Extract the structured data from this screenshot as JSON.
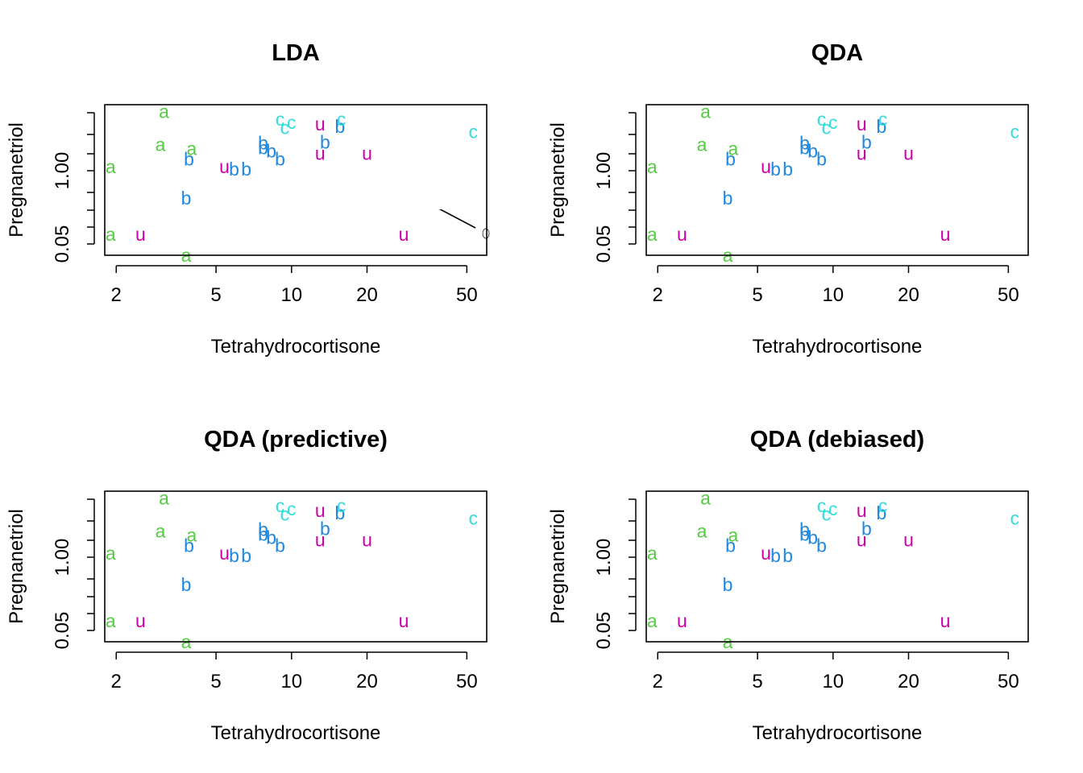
{
  "colors": {
    "a": "#55cc44",
    "b": "#2288dd",
    "c": "#33dddd",
    "u": "#cc00aa",
    "boundary": "#000000"
  },
  "chart_data": [
    {
      "type": "scatter",
      "title": "LDA",
      "xlabel": "Tetrahydrocortisone",
      "ylabel": "Pregnanetriol",
      "x_scale": "log",
      "y_scale": "log",
      "xlim": [
        1.8,
        60
      ],
      "ylim": [
        0.02,
        6.5
      ],
      "x_ticks": [
        2,
        5,
        10,
        20,
        50
      ],
      "y_ticks_labeled": [
        0.05,
        1.0
      ],
      "points": [
        {
          "label": "a",
          "x": 3.1,
          "y": 5.0
        },
        {
          "label": "a",
          "x": 3.0,
          "y": 1.4
        },
        {
          "label": "a",
          "x": 4.0,
          "y": 1.2
        },
        {
          "label": "a",
          "x": 1.9,
          "y": 0.6
        },
        {
          "label": "a",
          "x": 1.9,
          "y": 0.045
        },
        {
          "label": "a",
          "x": 3.8,
          "y": 0.02
        },
        {
          "label": "b",
          "x": 3.9,
          "y": 0.8
        },
        {
          "label": "b",
          "x": 3.8,
          "y": 0.18
        },
        {
          "label": "b",
          "x": 5.9,
          "y": 0.55
        },
        {
          "label": "b",
          "x": 6.6,
          "y": 0.55
        },
        {
          "label": "b",
          "x": 7.7,
          "y": 1.5
        },
        {
          "label": "b",
          "x": 7.7,
          "y": 1.25
        },
        {
          "label": "b",
          "x": 8.3,
          "y": 1.1
        },
        {
          "label": "b",
          "x": 9.0,
          "y": 0.8
        },
        {
          "label": "b",
          "x": 13.6,
          "y": 1.55
        },
        {
          "label": "b",
          "x": 15.6,
          "y": 2.8
        },
        {
          "label": "c",
          "x": 9.0,
          "y": 3.7
        },
        {
          "label": "c",
          "x": 10.0,
          "y": 3.3
        },
        {
          "label": "c",
          "x": 9.4,
          "y": 2.7
        },
        {
          "label": "c",
          "x": 15.8,
          "y": 3.7
        },
        {
          "label": "c",
          "x": 53.0,
          "y": 2.3
        },
        {
          "label": "u",
          "x": 2.5,
          "y": 0.045
        },
        {
          "label": "u",
          "x": 5.4,
          "y": 0.6
        },
        {
          "label": "u",
          "x": 13.0,
          "y": 3.1
        },
        {
          "label": "u",
          "x": 13.0,
          "y": 1.0
        },
        {
          "label": "u",
          "x": 20.0,
          "y": 1.0
        },
        {
          "label": "u",
          "x": 28.0,
          "y": 0.045
        }
      ]
    },
    {
      "type": "scatter",
      "title": "QDA",
      "xlabel": "Tetrahydrocortisone",
      "ylabel": "Pregnanetriol",
      "x_scale": "log",
      "y_scale": "log",
      "xlim": [
        1.8,
        60
      ],
      "ylim": [
        0.02,
        6.5
      ],
      "x_ticks": [
        2,
        5,
        10,
        20,
        50
      ],
      "y_ticks_labeled": [
        0.05,
        1.0
      ],
      "points": [
        {
          "label": "a",
          "x": 3.1,
          "y": 5.0
        },
        {
          "label": "a",
          "x": 3.0,
          "y": 1.4
        },
        {
          "label": "a",
          "x": 4.0,
          "y": 1.2
        },
        {
          "label": "a",
          "x": 1.9,
          "y": 0.6
        },
        {
          "label": "a",
          "x": 1.9,
          "y": 0.045
        },
        {
          "label": "a",
          "x": 3.8,
          "y": 0.02
        },
        {
          "label": "b",
          "x": 3.9,
          "y": 0.8
        },
        {
          "label": "b",
          "x": 3.8,
          "y": 0.18
        },
        {
          "label": "b",
          "x": 5.9,
          "y": 0.55
        },
        {
          "label": "b",
          "x": 6.6,
          "y": 0.55
        },
        {
          "label": "b",
          "x": 7.7,
          "y": 1.5
        },
        {
          "label": "b",
          "x": 7.7,
          "y": 1.25
        },
        {
          "label": "b",
          "x": 8.3,
          "y": 1.1
        },
        {
          "label": "b",
          "x": 9.0,
          "y": 0.8
        },
        {
          "label": "b",
          "x": 13.6,
          "y": 1.55
        },
        {
          "label": "b",
          "x": 15.6,
          "y": 2.8
        },
        {
          "label": "c",
          "x": 9.0,
          "y": 3.7
        },
        {
          "label": "c",
          "x": 10.0,
          "y": 3.3
        },
        {
          "label": "c",
          "x": 9.4,
          "y": 2.7
        },
        {
          "label": "c",
          "x": 15.8,
          "y": 3.7
        },
        {
          "label": "c",
          "x": 53.0,
          "y": 2.3
        },
        {
          "label": "u",
          "x": 2.5,
          "y": 0.045
        },
        {
          "label": "u",
          "x": 5.4,
          "y": 0.6
        },
        {
          "label": "u",
          "x": 13.0,
          "y": 3.1
        },
        {
          "label": "u",
          "x": 13.0,
          "y": 1.0
        },
        {
          "label": "u",
          "x": 20.0,
          "y": 1.0
        },
        {
          "label": "u",
          "x": 28.0,
          "y": 0.045
        }
      ]
    },
    {
      "type": "scatter",
      "title": "QDA (predictive)",
      "xlabel": "Tetrahydrocortisone",
      "ylabel": "Pregnanetriol",
      "x_scale": "log",
      "y_scale": "log",
      "xlim": [
        1.8,
        60
      ],
      "ylim": [
        0.02,
        6.5
      ],
      "x_ticks": [
        2,
        5,
        10,
        20,
        50
      ],
      "y_ticks_labeled": [
        0.05,
        1.0
      ],
      "points": [
        {
          "label": "a",
          "x": 3.1,
          "y": 5.0
        },
        {
          "label": "a",
          "x": 3.0,
          "y": 1.4
        },
        {
          "label": "a",
          "x": 4.0,
          "y": 1.2
        },
        {
          "label": "a",
          "x": 1.9,
          "y": 0.6
        },
        {
          "label": "a",
          "x": 1.9,
          "y": 0.045
        },
        {
          "label": "a",
          "x": 3.8,
          "y": 0.02
        },
        {
          "label": "b",
          "x": 3.9,
          "y": 0.8
        },
        {
          "label": "b",
          "x": 3.8,
          "y": 0.18
        },
        {
          "label": "b",
          "x": 5.9,
          "y": 0.55
        },
        {
          "label": "b",
          "x": 6.6,
          "y": 0.55
        },
        {
          "label": "b",
          "x": 7.7,
          "y": 1.5
        },
        {
          "label": "b",
          "x": 7.7,
          "y": 1.25
        },
        {
          "label": "b",
          "x": 8.3,
          "y": 1.1
        },
        {
          "label": "b",
          "x": 9.0,
          "y": 0.8
        },
        {
          "label": "b",
          "x": 13.6,
          "y": 1.55
        },
        {
          "label": "b",
          "x": 15.6,
          "y": 2.8
        },
        {
          "label": "c",
          "x": 9.0,
          "y": 3.7
        },
        {
          "label": "c",
          "x": 10.0,
          "y": 3.3
        },
        {
          "label": "c",
          "x": 9.4,
          "y": 2.7
        },
        {
          "label": "c",
          "x": 15.8,
          "y": 3.7
        },
        {
          "label": "c",
          "x": 53.0,
          "y": 2.3
        },
        {
          "label": "u",
          "x": 2.5,
          "y": 0.045
        },
        {
          "label": "u",
          "x": 5.4,
          "y": 0.6
        },
        {
          "label": "u",
          "x": 13.0,
          "y": 3.1
        },
        {
          "label": "u",
          "x": 13.0,
          "y": 1.0
        },
        {
          "label": "u",
          "x": 20.0,
          "y": 1.0
        },
        {
          "label": "u",
          "x": 28.0,
          "y": 0.045
        }
      ]
    },
    {
      "type": "scatter",
      "title": "QDA (debiased)",
      "xlabel": "Tetrahydrocortisone",
      "ylabel": "Pregnanetriol",
      "x_scale": "log",
      "y_scale": "log",
      "xlim": [
        1.8,
        60
      ],
      "ylim": [
        0.02,
        6.5
      ],
      "x_ticks": [
        2,
        5,
        10,
        20,
        50
      ],
      "y_ticks_labeled": [
        0.05,
        1.0
      ],
      "points": [
        {
          "label": "a",
          "x": 3.1,
          "y": 5.0
        },
        {
          "label": "a",
          "x": 3.0,
          "y": 1.4
        },
        {
          "label": "a",
          "x": 4.0,
          "y": 1.2
        },
        {
          "label": "a",
          "x": 1.9,
          "y": 0.6
        },
        {
          "label": "a",
          "x": 1.9,
          "y": 0.045
        },
        {
          "label": "a",
          "x": 3.8,
          "y": 0.02
        },
        {
          "label": "b",
          "x": 3.9,
          "y": 0.8
        },
        {
          "label": "b",
          "x": 3.8,
          "y": 0.18
        },
        {
          "label": "b",
          "x": 5.9,
          "y": 0.55
        },
        {
          "label": "b",
          "x": 6.6,
          "y": 0.55
        },
        {
          "label": "b",
          "x": 7.7,
          "y": 1.5
        },
        {
          "label": "b",
          "x": 7.7,
          "y": 1.25
        },
        {
          "label": "b",
          "x": 8.3,
          "y": 1.1
        },
        {
          "label": "b",
          "x": 9.0,
          "y": 0.8
        },
        {
          "label": "b",
          "x": 13.6,
          "y": 1.55
        },
        {
          "label": "b",
          "x": 15.6,
          "y": 2.8
        },
        {
          "label": "c",
          "x": 9.0,
          "y": 3.7
        },
        {
          "label": "c",
          "x": 10.0,
          "y": 3.3
        },
        {
          "label": "c",
          "x": 9.4,
          "y": 2.7
        },
        {
          "label": "c",
          "x": 15.8,
          "y": 3.7
        },
        {
          "label": "c",
          "x": 53.0,
          "y": 2.3
        },
        {
          "label": "u",
          "x": 2.5,
          "y": 0.045
        },
        {
          "label": "u",
          "x": 5.4,
          "y": 0.6
        },
        {
          "label": "u",
          "x": 13.0,
          "y": 3.1
        },
        {
          "label": "u",
          "x": 13.0,
          "y": 1.0
        },
        {
          "label": "u",
          "x": 20.0,
          "y": 1.0
        },
        {
          "label": "u",
          "x": 28.0,
          "y": 0.045
        }
      ]
    }
  ]
}
